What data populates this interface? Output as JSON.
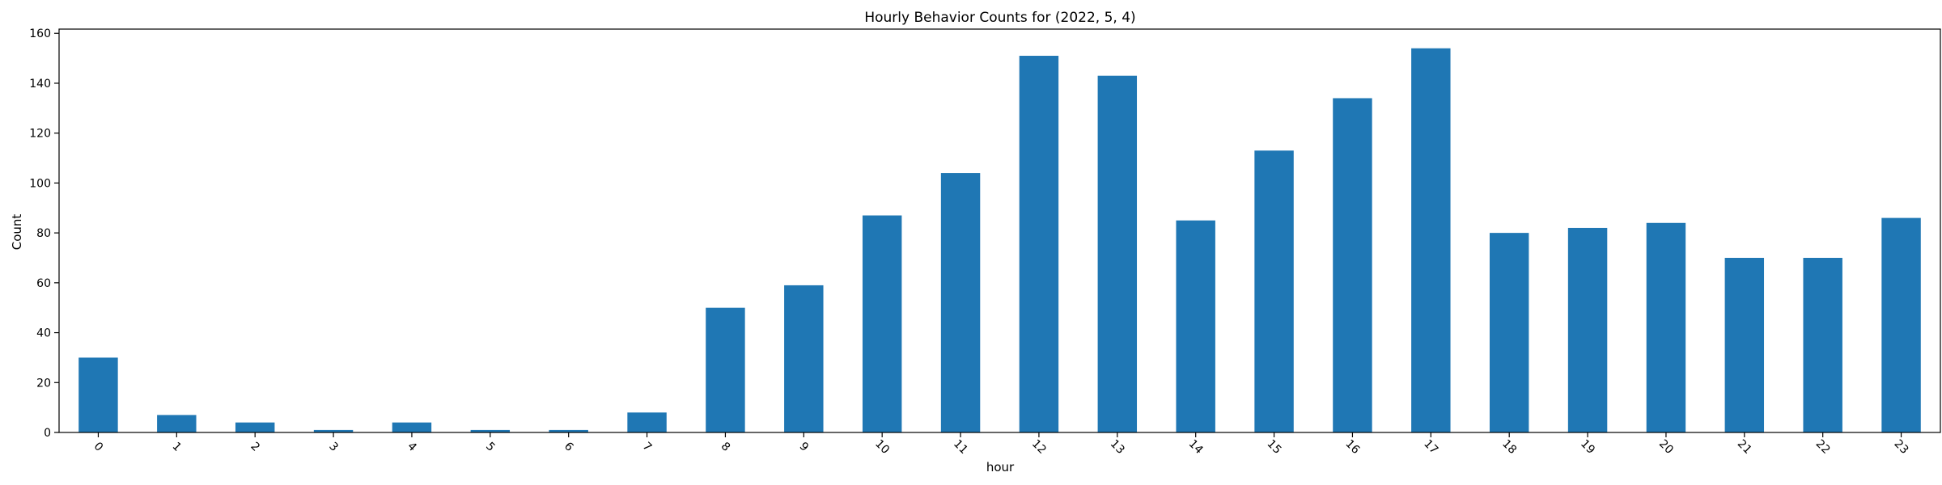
{
  "chart_data": {
    "type": "bar",
    "title": "Hourly Behavior Counts for (2022, 5, 4)",
    "xlabel": "hour",
    "ylabel": "Count",
    "categories": [
      "0",
      "1",
      "2",
      "3",
      "4",
      "5",
      "6",
      "7",
      "8",
      "9",
      "10",
      "11",
      "12",
      "13",
      "14",
      "15",
      "16",
      "17",
      "18",
      "19",
      "20",
      "21",
      "22",
      "23"
    ],
    "values": [
      30,
      7,
      4,
      1,
      4,
      1,
      1,
      8,
      50,
      59,
      87,
      104,
      151,
      143,
      85,
      113,
      134,
      154,
      80,
      82,
      84,
      70,
      70,
      86
    ],
    "ylim": [
      0,
      161.7
    ],
    "yticks": [
      0,
      20,
      40,
      60,
      80,
      100,
      120,
      140,
      160
    ],
    "bar_color": "#1f77b4",
    "grid": false,
    "legend": "none"
  }
}
